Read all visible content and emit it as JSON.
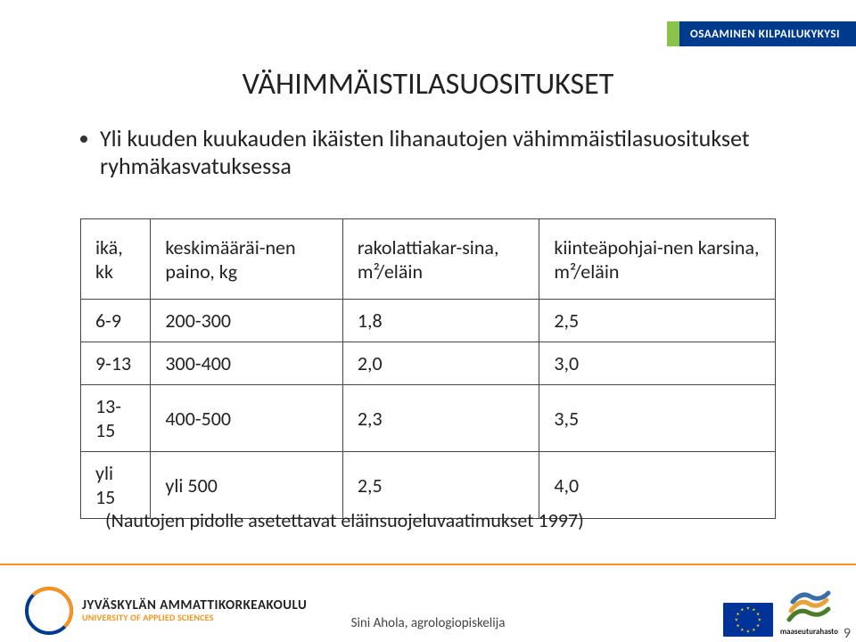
{
  "banner": {
    "text": "OSAAMINEN KILPAILUKYKYSI",
    "green": "#8bc34a",
    "blue": "#003a8c"
  },
  "title": "VÄHIMMÄISTILASUOSITUKSET",
  "bullet": "Yli kuuden kuukauden ikäisten lihanautojen vähimmäistilasuositukset ryhmäkasvatuksessa",
  "table": {
    "columns": [
      "ikä, kk",
      "keskimääräi-nen paino, kg",
      "rakolattiakar-sina, m²/eläin",
      "kiinteäpohjai-nen karsina, m²/eläin"
    ],
    "rows": [
      [
        "6-9",
        "200-300",
        "1,8",
        "2,5"
      ],
      [
        "9-13",
        "300-400",
        "2,0",
        "3,0"
      ],
      [
        "13-15",
        "400-500",
        "2,3",
        "3,5"
      ],
      [
        "yli 15",
        "yli 500",
        "2,5",
        "4,0"
      ]
    ]
  },
  "reference": "(Nautojen pidolle asetettavat eläinsuojeluvaatimukset 1997)",
  "footer": {
    "center": "Sini Ahola, agrologiopiskelija",
    "jamk_line1": "JYVÄSKYLÄN AMMATTIKORKEAKOULU",
    "jamk_line2": "UNIVERSITY OF APPLIED SCIENCES",
    "fund_label": "maaseuturahasto",
    "line_color": "#f7931e"
  },
  "page_number": "9",
  "colors": {
    "text": "#222222",
    "table_border": "#444444",
    "eu_blue": "#003399",
    "eu_gold": "#ffcc00",
    "jamk_blue": "#003a8c",
    "jamk_orange": "#f7931e",
    "fund_green": "#4a7c2a",
    "fund_orange": "#e8a23a",
    "fund_blue": "#3a6ea8"
  }
}
